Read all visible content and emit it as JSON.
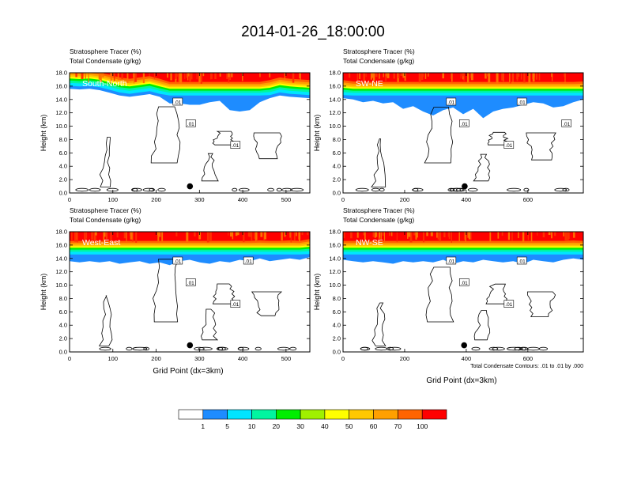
{
  "title": "2014-01-26_18:00:00",
  "colorbar": {
    "colors": [
      "#ffffff",
      "#1e8cff",
      "#00e5ff",
      "#00f5a0",
      "#00ee00",
      "#a0f000",
      "#ffff00",
      "#ffc800",
      "#ffa000",
      "#ff6400",
      "#ff0000"
    ],
    "labels": [
      "1",
      "5",
      "10",
      "20",
      "30",
      "40",
      "50",
      "60",
      "70",
      "100"
    ]
  },
  "chart_data": [
    {
      "type": "contour",
      "panel_label": "South-North",
      "title_line1": "Stratosphere Tracer   (%)",
      "title_line2": "Total Condensate   (g/kg)",
      "ylabel": "Height (km)",
      "xlabel": "",
      "xlim": [
        0,
        555
      ],
      "ylim": [
        0,
        18
      ],
      "xticks": [
        "0",
        "100",
        "200",
        "300",
        "400",
        "500"
      ],
      "yticks": [
        "0.0",
        "2.0",
        "4.0",
        "6.0",
        "8.0",
        "10.0",
        "12.0",
        "14.0",
        "16.0",
        "18.0"
      ],
      "tracer_base_km": [
        15.6,
        15.5,
        15.6,
        15.4,
        15.0,
        14.6,
        14.4,
        14.6,
        14.8,
        14.4,
        13.4,
        13.4,
        13.2,
        13.2,
        13.6,
        13.8,
        12.4,
        12.2,
        12.4,
        13.6,
        14.2,
        14.6,
        14.4,
        14.3,
        14.2
      ],
      "contour_labels": [
        ".01",
        ".01",
        ".01"
      ],
      "marker": {
        "x": 278,
        "y": 1.0
      }
    },
    {
      "type": "contour",
      "panel_label": "SW-NE",
      "title_line1": "Stratosphere Tracer   (%)",
      "title_line2": "Total Condensate   (g/kg)",
      "ylabel": "Height (km)",
      "xlabel": "",
      "xlim": [
        0,
        780
      ],
      "ylim": [
        0,
        18
      ],
      "xticks": [
        "0",
        "200",
        "400",
        "600"
      ],
      "yticks": [
        "0.0",
        "2.0",
        "4.0",
        "6.0",
        "8.0",
        "10.0",
        "12.0",
        "14.0",
        "16.0",
        "18.0"
      ],
      "tracer_base_km": [
        14.2,
        14.0,
        13.6,
        13.8,
        13.4,
        13.6,
        12.6,
        13.0,
        12.2,
        11.6,
        12.4,
        12.8,
        11.8,
        12.6,
        11.2,
        12.2,
        12.6,
        12.8,
        13.2,
        13.6,
        13.4,
        12.8,
        13.0,
        13.6,
        14.0
      ],
      "contour_labels": [
        ".01",
        ".01",
        ".01",
        ".01",
        ".01"
      ],
      "marker": {
        "x": 395,
        "y": 1.0
      }
    },
    {
      "type": "contour",
      "panel_label": "West-East",
      "title_line1": "Stratosphere Tracer   (%)",
      "title_line2": "Total Condensate   (g/kg)",
      "ylabel": "Height (km)",
      "xlabel": "Grid Point (dx=3km)",
      "xlim": [
        0,
        555
      ],
      "ylim": [
        0,
        18
      ],
      "xticks": [
        "0",
        "100",
        "200",
        "300",
        "400",
        "500"
      ],
      "yticks": [
        "0.0",
        "2.0",
        "4.0",
        "6.0",
        "8.0",
        "10.0",
        "12.0",
        "14.0",
        "16.0",
        "18.0"
      ],
      "tracer_base_km": [
        13.6,
        13.4,
        13.6,
        13.4,
        13.6,
        13.2,
        13.4,
        13.6,
        13.2,
        13.4,
        13.0,
        13.6,
        13.8,
        13.4,
        13.2,
        13.6,
        13.4,
        13.8,
        13.6,
        14.0,
        13.6,
        13.8,
        14.0,
        13.8,
        14.2
      ],
      "contour_labels": [
        ".01",
        ".01",
        ".01",
        ".01"
      ],
      "marker": {
        "x": 278,
        "y": 1.0
      }
    },
    {
      "type": "contour",
      "panel_label": "NW-SE",
      "title_line1": "Stratosphere Tracer   (%)",
      "title_line2": "Total Condensate   (g/kg)",
      "ylabel": "Height (km)",
      "xlabel": "Grid Point (dx=3km)",
      "xlim": [
        0,
        780
      ],
      "ylim": [
        0,
        18
      ],
      "xticks": [
        "0",
        "200",
        "400",
        "600"
      ],
      "yticks": [
        "0.0",
        "2.0",
        "4.0",
        "6.0",
        "8.0",
        "10.0",
        "12.0",
        "14.0",
        "16.0",
        "18.0"
      ],
      "tracer_base_km": [
        13.8,
        13.6,
        13.4,
        13.6,
        13.4,
        13.2,
        13.6,
        13.4,
        13.6,
        13.4,
        13.8,
        13.2,
        13.6,
        13.4,
        13.8,
        13.6,
        13.4,
        13.6,
        13.2,
        13.8,
        13.6,
        13.4,
        13.8,
        14.0,
        13.8
      ],
      "contour_labels": [
        ".01",
        ".01",
        ".01",
        ".01"
      ],
      "marker": {
        "x": 393,
        "y": 1.0
      },
      "footnote": "Total Condensate Contours: .01 to .01 by .000"
    }
  ]
}
